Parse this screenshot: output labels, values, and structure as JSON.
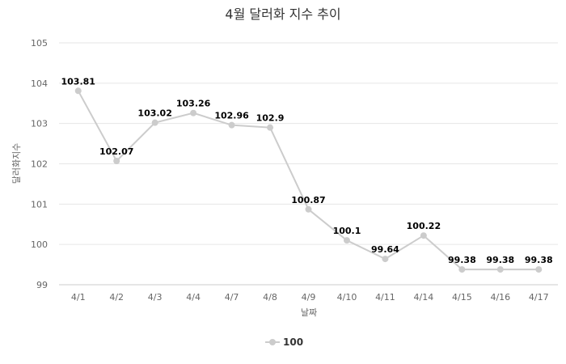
{
  "chart_data": {
    "type": "line",
    "title": "4월 달러화 지수 추이",
    "xlabel": "날짜",
    "ylabel": "달러화지수",
    "categories": [
      "4/1",
      "4/2",
      "4/3",
      "4/4",
      "4/7",
      "4/8",
      "4/9",
      "4/10",
      "4/11",
      "4/14",
      "4/15",
      "4/16",
      "4/17"
    ],
    "series": [
      {
        "name": "100",
        "values": [
          103.81,
          102.07,
          103.02,
          103.26,
          102.96,
          102.9,
          100.87,
          100.1,
          99.64,
          100.22,
          99.38,
          99.38,
          99.38
        ],
        "color": "#cccccc"
      }
    ],
    "ylim": [
      99,
      105
    ],
    "yticks": [
      "99",
      "100",
      "101",
      "102",
      "103",
      "104",
      "105"
    ],
    "data_labels": [
      "103.81",
      "102.07",
      "103.02",
      "103.26",
      "102.96",
      "102.9",
      "100.87",
      "100.1",
      "99.64",
      "100.22",
      "99.38",
      "99.38",
      "99.38"
    ],
    "grid": true,
    "legend": "bottom"
  }
}
